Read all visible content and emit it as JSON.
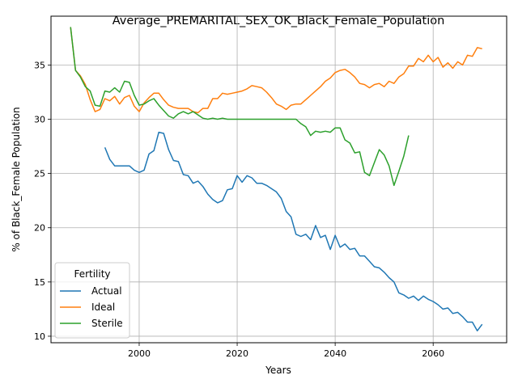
{
  "chart_data": {
    "type": "line",
    "title": "Average_PREMARITAL_SEX_OK_Black_Female_Population",
    "xlabel": "Years",
    "ylabel": "% of Black_Female Population",
    "xlim": [
      1982,
      2075
    ],
    "ylim": [
      9.4,
      39.5
    ],
    "x_ticks": [
      2000,
      2020,
      2040,
      2060
    ],
    "y_ticks": [
      10,
      15,
      20,
      25,
      30,
      35
    ],
    "grid": true,
    "legend": {
      "title": "Fertility",
      "placement": "lower-left"
    },
    "series": [
      {
        "name": "Actual",
        "color": "#1f77b4",
        "x": [
          1993,
          1994,
          1995,
          1996,
          1997,
          1998,
          1999,
          2000,
          2001,
          2002,
          2003,
          2004,
          2005,
          2006,
          2007,
          2008,
          2009,
          2010,
          2011,
          2012,
          2013,
          2014,
          2015,
          2016,
          2017,
          2018,
          2019,
          2020,
          2021,
          2022,
          2023,
          2024,
          2025,
          2026,
          2027,
          2028,
          2029,
          2030,
          2031,
          2032,
          2033,
          2034,
          2035,
          2036,
          2037,
          2038,
          2039,
          2040,
          2041,
          2042,
          2043,
          2044,
          2045,
          2046,
          2047,
          2048,
          2049,
          2050,
          2051,
          2052,
          2053,
          2054,
          2055,
          2056,
          2057,
          2058,
          2059,
          2060,
          2061,
          2062,
          2063,
          2064,
          2065,
          2066,
          2067,
          2068,
          2069,
          2070
        ],
        "values": [
          27.4,
          26.3,
          25.7,
          25.7,
          25.7,
          25.7,
          25.3,
          25.1,
          25.3,
          26.8,
          27.1,
          28.8,
          28.7,
          27.2,
          26.2,
          26.1,
          24.9,
          24.8,
          24.1,
          24.3,
          23.8,
          23.1,
          22.6,
          22.3,
          22.5,
          23.5,
          23.6,
          24.8,
          24.2,
          24.8,
          24.6,
          24.1,
          24.1,
          23.9,
          23.6,
          23.3,
          22.7,
          21.5,
          21.0,
          19.4,
          19.2,
          19.4,
          18.9,
          20.2,
          19.1,
          19.3,
          18.0,
          19.3,
          18.2,
          18.5,
          18.0,
          18.1,
          17.4,
          17.4,
          16.9,
          16.4,
          16.3,
          15.9,
          15.4,
          15.0,
          14.0,
          13.8,
          13.5,
          13.7,
          13.3,
          13.7,
          13.4,
          13.2,
          12.9,
          12.5,
          12.6,
          12.1,
          12.2,
          11.8,
          11.3,
          11.3,
          10.5,
          11.1
        ]
      },
      {
        "name": "Ideal",
        "color": "#ff7f0e",
        "x": [
          1986,
          1987,
          1988,
          1989,
          1990,
          1991,
          1992,
          1993,
          1994,
          1995,
          1996,
          1997,
          1998,
          1999,
          2000,
          2001,
          2002,
          2003,
          2004,
          2005,
          2006,
          2007,
          2008,
          2009,
          2010,
          2011,
          2012,
          2013,
          2014,
          2015,
          2016,
          2017,
          2018,
          2019,
          2020,
          2021,
          2022,
          2023,
          2024,
          2025,
          2026,
          2027,
          2028,
          2029,
          2030,
          2031,
          2032,
          2033,
          2034,
          2035,
          2036,
          2037,
          2038,
          2039,
          2040,
          2041,
          2042,
          2043,
          2044,
          2045,
          2046,
          2047,
          2048,
          2049,
          2050,
          2051,
          2052,
          2053,
          2054,
          2055,
          2056,
          2057,
          2058,
          2059,
          2060,
          2061,
          2062,
          2063,
          2064,
          2065,
          2066,
          2067,
          2068,
          2069,
          2070
        ],
        "values": [
          38.5,
          34.5,
          34.0,
          33.2,
          31.8,
          30.7,
          30.9,
          31.9,
          31.7,
          32.1,
          31.4,
          32.0,
          32.2,
          31.2,
          30.7,
          31.5,
          32.0,
          32.4,
          32.4,
          31.8,
          31.3,
          31.1,
          31.0,
          31.0,
          31.0,
          30.7,
          30.6,
          31.0,
          31.0,
          31.9,
          31.9,
          32.4,
          32.3,
          32.4,
          32.5,
          32.6,
          32.8,
          33.1,
          33.0,
          32.9,
          32.5,
          32.0,
          31.4,
          31.2,
          30.9,
          31.3,
          31.4,
          31.4,
          31.8,
          32.2,
          32.6,
          33.0,
          33.5,
          33.8,
          34.3,
          34.5,
          34.6,
          34.3,
          33.9,
          33.3,
          33.2,
          32.9,
          33.2,
          33.3,
          33.0,
          33.5,
          33.3,
          33.9,
          34.2,
          34.9,
          34.9,
          35.6,
          35.3,
          35.9,
          35.3,
          35.7,
          34.8,
          35.2,
          34.7,
          35.3,
          35.0,
          35.9,
          35.8,
          36.6,
          36.5
        ]
      },
      {
        "name": "Sterile",
        "color": "#2ca02c",
        "x": [
          1986,
          1987,
          1988,
          1989,
          1990,
          1991,
          1992,
          1993,
          1994,
          1995,
          1996,
          1997,
          1998,
          1999,
          2000,
          2001,
          2002,
          2003,
          2004,
          2005,
          2006,
          2007,
          2008,
          2009,
          2010,
          2011,
          2012,
          2013,
          2014,
          2015,
          2016,
          2017,
          2018,
          2019,
          2020,
          2021,
          2022,
          2023,
          2024,
          2025,
          2026,
          2027,
          2028,
          2029,
          2030,
          2031,
          2032,
          2033,
          2034,
          2035,
          2036,
          2037,
          2038,
          2039,
          2040,
          2041,
          2042,
          2043,
          2044,
          2045,
          2046,
          2047,
          2048,
          2049,
          2050,
          2051,
          2052,
          2053,
          2054,
          2055
        ],
        "values": [
          38.5,
          34.5,
          33.9,
          33.0,
          32.6,
          31.3,
          31.2,
          32.6,
          32.5,
          32.9,
          32.5,
          33.5,
          33.4,
          32.2,
          31.3,
          31.4,
          31.7,
          31.9,
          31.3,
          30.8,
          30.3,
          30.1,
          30.5,
          30.7,
          30.5,
          30.7,
          30.4,
          30.1,
          30.0,
          30.1,
          30.0,
          30.1,
          30.0,
          30.0,
          30.0,
          30.0,
          30.0,
          30.0,
          30.0,
          30.0,
          30.0,
          30.0,
          30.0,
          30.0,
          30.0,
          30.0,
          30.0,
          29.6,
          29.3,
          28.5,
          28.9,
          28.8,
          28.9,
          28.8,
          29.2,
          29.2,
          28.1,
          27.8,
          26.9,
          27.0,
          25.1,
          24.8,
          26.0,
          27.2,
          26.7,
          25.7,
          23.9,
          25.2,
          26.6,
          28.5
        ]
      }
    ]
  }
}
